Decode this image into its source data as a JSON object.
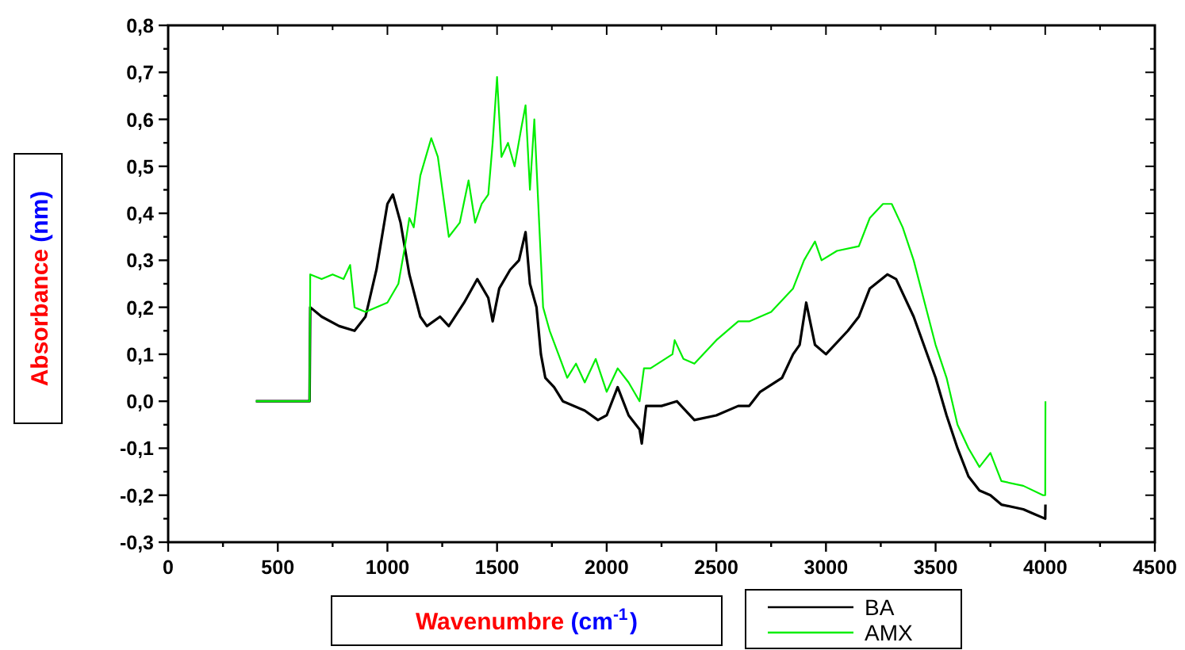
{
  "chart_data": {
    "type": "line",
    "xlabel": "Wavenumbre (cm$^{-1}$)",
    "ylabel": "Absorbance (nm)",
    "xlim": [
      0,
      4500
    ],
    "ylim": [
      -0.3,
      0.8
    ],
    "xticks": [
      0,
      {
        "value": 250,
        "label": null
      },
      500,
      {
        "value": 750,
        "label": null
      },
      1000,
      {
        "value": 1250,
        "label": null
      },
      1500,
      {
        "value": 1750,
        "label": null
      },
      2000,
      {
        "value": 2250,
        "label": null
      },
      2500,
      {
        "value": 2750,
        "label": null
      },
      3000,
      {
        "value": 3250,
        "label": null
      },
      3500,
      {
        "value": 3750,
        "label": null
      },
      4000,
      {
        "value": 4250,
        "label": null
      },
      4500
    ],
    "yticks": [
      {
        "value": -0.3,
        "label": "-0,3"
      },
      {
        "value": -0.25,
        "label": null
      },
      {
        "value": -0.2,
        "label": "-0,2"
      },
      {
        "value": -0.15,
        "label": null
      },
      {
        "value": -0.1,
        "label": "-0,1"
      },
      {
        "value": -0.05,
        "label": null
      },
      {
        "value": 0,
        "label": "0,0"
      },
      {
        "value": 0.05,
        "label": null
      },
      {
        "value": 0.1,
        "label": "0,1"
      },
      {
        "value": 0.15,
        "label": null
      },
      {
        "value": 0.2,
        "label": "0,2"
      },
      {
        "value": 0.25,
        "label": null
      },
      {
        "value": 0.3,
        "label": "0,3"
      },
      {
        "value": 0.35,
        "label": null
      },
      {
        "value": 0.4,
        "label": "0,4"
      },
      {
        "value": 0.45,
        "label": null
      },
      {
        "value": 0.5,
        "label": "0,5"
      },
      {
        "value": 0.55,
        "label": null
      },
      {
        "value": 0.6,
        "label": "0,6"
      },
      {
        "value": 0.65,
        "label": null
      },
      {
        "value": 0.7,
        "label": "0,7"
      },
      {
        "value": 0.75,
        "label": null
      },
      {
        "value": 0.8,
        "label": "0,8"
      }
    ],
    "grid": false,
    "legend": "bottom",
    "marker": "none",
    "line_style": "solid",
    "series": [
      {
        "name": "BA",
        "color": "#000000",
        "x": [
          400,
          645,
          648,
          700,
          780,
          850,
          900,
          950,
          1000,
          1025,
          1060,
          1100,
          1150,
          1180,
          1240,
          1280,
          1350,
          1410,
          1460,
          1480,
          1510,
          1560,
          1600,
          1630,
          1650,
          1680,
          1700,
          1720,
          1760,
          1800,
          1900,
          1960,
          2000,
          2050,
          2100,
          2150,
          2160,
          2180,
          2250,
          2320,
          2400,
          2500,
          2600,
          2650,
          2700,
          2800,
          2850,
          2880,
          2910,
          2950,
          3000,
          3100,
          3150,
          3200,
          3280,
          3320,
          3400,
          3500,
          3550,
          3600,
          3650,
          3700,
          3750,
          3800,
          3900,
          3950,
          4000,
          4001
        ],
        "values": [
          0,
          0,
          0.2,
          0.18,
          0.16,
          0.15,
          0.18,
          0.28,
          0.42,
          0.44,
          0.38,
          0.27,
          0.18,
          0.16,
          0.18,
          0.16,
          0.21,
          0.26,
          0.22,
          0.17,
          0.24,
          0.28,
          0.3,
          0.36,
          0.25,
          0.2,
          0.1,
          0.05,
          0.03,
          0,
          -0.02,
          -0.04,
          -0.03,
          0.03,
          -0.03,
          -0.06,
          -0.09,
          -0.01,
          -0.01,
          0,
          -0.04,
          -0.03,
          -0.01,
          -0.01,
          0.02,
          0.05,
          0.1,
          0.12,
          0.21,
          0.12,
          0.1,
          0.15,
          0.18,
          0.24,
          0.27,
          0.26,
          0.18,
          0.05,
          -0.03,
          -0.1,
          -0.16,
          -0.19,
          -0.2,
          -0.22,
          -0.23,
          -0.24,
          -0.25,
          -0.22
        ]
      },
      {
        "name": "AMX",
        "color": "#00ee00",
        "x": [
          400,
          645,
          648,
          700,
          750,
          800,
          830,
          850,
          900,
          1000,
          1050,
          1080,
          1100,
          1120,
          1150,
          1200,
          1230,
          1280,
          1330,
          1370,
          1400,
          1430,
          1460,
          1480,
          1500,
          1520,
          1550,
          1580,
          1610,
          1630,
          1650,
          1670,
          1690,
          1710,
          1740,
          1780,
          1820,
          1860,
          1900,
          1950,
          2000,
          2050,
          2100,
          2150,
          2170,
          2200,
          2300,
          2310,
          2350,
          2400,
          2500,
          2600,
          2650,
          2750,
          2850,
          2900,
          2950,
          2980,
          3050,
          3150,
          3200,
          3260,
          3300,
          3350,
          3400,
          3450,
          3500,
          3550,
          3600,
          3650,
          3700,
          3750,
          3800,
          3900,
          3990,
          4000,
          4001
        ],
        "values": [
          0,
          0,
          0.27,
          0.26,
          0.27,
          0.26,
          0.29,
          0.2,
          0.19,
          0.21,
          0.25,
          0.33,
          0.39,
          0.37,
          0.48,
          0.56,
          0.52,
          0.35,
          0.38,
          0.47,
          0.38,
          0.42,
          0.44,
          0.55,
          0.69,
          0.52,
          0.55,
          0.5,
          0.58,
          0.63,
          0.45,
          0.6,
          0.4,
          0.2,
          0.15,
          0.1,
          0.05,
          0.08,
          0.04,
          0.09,
          0.02,
          0.07,
          0.04,
          0,
          0.07,
          0.07,
          0.1,
          0.13,
          0.09,
          0.08,
          0.13,
          0.17,
          0.17,
          0.19,
          0.24,
          0.3,
          0.34,
          0.3,
          0.32,
          0.33,
          0.39,
          0.42,
          0.42,
          0.37,
          0.3,
          0.21,
          0.12,
          0.05,
          -0.05,
          -0.1,
          -0.14,
          -0.11,
          -0.17,
          -0.18,
          -0.2,
          -0.2,
          0
        ]
      }
    ]
  }
}
